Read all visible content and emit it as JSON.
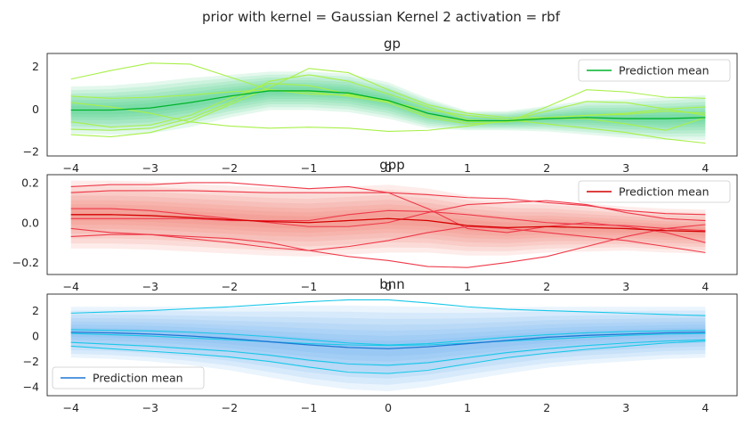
{
  "suptitle": "prior with kernel = Gaussian Kernel 2 activation = rbf",
  "chart_data": [
    {
      "type": "line",
      "title": "gp",
      "xlim": [
        -4.3,
        4.4
      ],
      "ylim": [
        -2.2,
        2.6
      ],
      "x_ticks": [
        -4,
        -3,
        -2,
        -1,
        0,
        1,
        2,
        3,
        4
      ],
      "x_tick_labels": [
        "−4",
        "−3",
        "−2",
        "−1",
        "0",
        "1",
        "2",
        "3",
        "4"
      ],
      "y_ticks": [
        -2,
        0,
        2
      ],
      "y_tick_labels": [
        "−2",
        "0",
        "2"
      ],
      "legend": {
        "label": "Prediction mean",
        "placement": "upper right"
      },
      "colors": {
        "mean": "#00b32c",
        "band": "#2ecc71",
        "sample": "#a8f04a"
      },
      "x": [
        -4,
        -3.5,
        -3,
        -2.5,
        -2,
        -1.5,
        -1,
        -0.5,
        0,
        0.5,
        1,
        1.5,
        2,
        2.5,
        3,
        3.5,
        4
      ],
      "mean": [
        -0.05,
        -0.05,
        0.05,
        0.3,
        0.6,
        0.85,
        0.85,
        0.75,
        0.4,
        -0.2,
        -0.55,
        -0.55,
        -0.45,
        -0.4,
        -0.45,
        -0.45,
        -0.4
      ],
      "band_half_width": [
        1.1,
        1.15,
        1.2,
        1.15,
        1.0,
        0.9,
        0.9,
        0.9,
        0.85,
        0.7,
        0.45,
        0.45,
        0.6,
        0.8,
        0.9,
        1.0,
        1.05
      ],
      "samples": [
        [
          1.4,
          1.8,
          2.15,
          2.1,
          1.5,
          0.9,
          0.7,
          0.65,
          0.4,
          -0.3,
          -0.6,
          -0.55,
          -0.1,
          0.35,
          0.3,
          0.0,
          -0.3
        ],
        [
          0.6,
          0.5,
          0.55,
          0.65,
          0.8,
          0.9,
          0.8,
          0.6,
          0.3,
          -0.4,
          -0.7,
          -0.6,
          -0.45,
          -0.45,
          -0.7,
          -1.0,
          -0.4
        ],
        [
          -0.6,
          -0.85,
          -0.75,
          -0.3,
          0.5,
          1.2,
          1.1,
          0.7,
          0.35,
          -0.05,
          -0.3,
          -0.5,
          -0.7,
          -0.9,
          -1.1,
          -1.4,
          -1.6
        ],
        [
          -0.95,
          -1.0,
          -0.9,
          -0.45,
          0.3,
          1.3,
          1.6,
          1.3,
          0.7,
          0.1,
          -0.5,
          -0.6,
          0.1,
          0.9,
          0.8,
          0.55,
          0.5
        ],
        [
          -1.2,
          -1.3,
          -1.1,
          -0.6,
          0.2,
          1.0,
          1.9,
          1.7,
          0.9,
          0.2,
          -0.2,
          -0.4,
          -0.4,
          -0.3,
          -0.2,
          0.0,
          0.1
        ],
        [
          0.3,
          0.1,
          -0.2,
          -0.6,
          -0.8,
          -0.9,
          -0.85,
          -0.9,
          -1.05,
          -1.0,
          -0.8,
          -0.55,
          -0.4,
          -0.3,
          -0.25,
          -0.1,
          -0.2
        ]
      ]
    },
    {
      "type": "line",
      "title": "gpp",
      "xlim": [
        -4.3,
        4.4
      ],
      "ylim": [
        -0.26,
        0.24
      ],
      "x_ticks": [
        -4,
        -3,
        -2,
        -1,
        0,
        1,
        2,
        3,
        4
      ],
      "x_tick_labels": [
        "−4",
        "−3",
        "−2",
        "−1",
        "0",
        "1",
        "2",
        "3",
        "4"
      ],
      "y_ticks": [
        -0.2,
        0.0,
        0.2
      ],
      "y_tick_labels": [
        "−0.2",
        "0.0",
        "0.2"
      ],
      "legend": {
        "label": "Prediction mean",
        "placement": "upper right"
      },
      "colors": {
        "mean": "#d40000",
        "band": "#f06a5a",
        "sample": "#ee3a4a"
      },
      "x": [
        -4,
        -3.5,
        -3,
        -2.5,
        -2,
        -1.5,
        -1,
        -0.5,
        0,
        0.5,
        1,
        1.5,
        2,
        2.5,
        3,
        3.5,
        4
      ],
      "mean": [
        0.04,
        0.04,
        0.035,
        0.025,
        0.015,
        0.005,
        0.0,
        0.01,
        0.02,
        0.01,
        -0.015,
        -0.025,
        -0.02,
        -0.025,
        -0.03,
        -0.04,
        -0.045
      ],
      "band_half_width": [
        0.17,
        0.17,
        0.17,
        0.17,
        0.17,
        0.17,
        0.17,
        0.17,
        0.17,
        0.16,
        0.15,
        0.14,
        0.13,
        0.12,
        0.11,
        0.11,
        0.11
      ],
      "samples": [
        [
          0.18,
          0.19,
          0.19,
          0.2,
          0.2,
          0.185,
          0.17,
          0.18,
          0.15,
          0.07,
          -0.03,
          -0.05,
          -0.02,
          0.0,
          -0.02,
          -0.05,
          -0.1
        ],
        [
          0.15,
          0.16,
          0.16,
          0.16,
          0.155,
          0.15,
          0.15,
          0.15,
          0.15,
          0.14,
          0.125,
          0.12,
          0.1,
          0.085,
          0.06,
          0.045,
          0.04
        ],
        [
          0.07,
          0.07,
          0.06,
          0.04,
          0.02,
          0.0,
          -0.02,
          -0.02,
          0.0,
          0.05,
          0.09,
          0.1,
          0.11,
          0.09,
          0.05,
          0.02,
          0.01
        ],
        [
          -0.03,
          -0.05,
          -0.06,
          -0.08,
          -0.1,
          -0.125,
          -0.14,
          -0.12,
          -0.09,
          -0.05,
          -0.02,
          -0.03,
          -0.05,
          -0.07,
          -0.09,
          -0.12,
          -0.15
        ],
        [
          -0.07,
          -0.06,
          -0.06,
          -0.07,
          -0.08,
          -0.1,
          -0.14,
          -0.17,
          -0.19,
          -0.22,
          -0.225,
          -0.2,
          -0.17,
          -0.12,
          -0.07,
          -0.03,
          -0.01
        ],
        [
          0.02,
          0.02,
          0.02,
          0.02,
          0.01,
          0.01,
          0.01,
          0.04,
          0.06,
          0.055,
          0.04,
          0.02,
          0.0,
          -0.01,
          -0.015,
          -0.03,
          -0.04
        ]
      ]
    },
    {
      "type": "line",
      "title": "bnn",
      "xlim": [
        -4.3,
        4.4
      ],
      "ylim": [
        -4.7,
        3.3
      ],
      "x_ticks": [
        -4,
        -3,
        -2,
        -1,
        0,
        1,
        2,
        3,
        4
      ],
      "x_tick_labels": [
        "−4",
        "−3",
        "−2",
        "−1",
        "0",
        "1",
        "2",
        "3",
        "4"
      ],
      "y_ticks": [
        -4,
        -2,
        0,
        2
      ],
      "y_tick_labels": [
        "−4",
        "−2",
        "0",
        "2"
      ],
      "legend": {
        "label": "Prediction mean",
        "placement": "lower left"
      },
      "colors": {
        "mean": "#1f77d4",
        "band": "#5aaaf0",
        "sample": "#18c8e8"
      },
      "x": [
        -4,
        -3.5,
        -3,
        -2.5,
        -2,
        -1.5,
        -1,
        -0.5,
        0,
        0.5,
        1,
        1.5,
        2,
        2.5,
        3,
        3.5,
        4
      ],
      "mean": [
        0.3,
        0.25,
        0.15,
        0.0,
        -0.2,
        -0.45,
        -0.7,
        -0.9,
        -1.0,
        -0.85,
        -0.6,
        -0.35,
        -0.1,
        0.05,
        0.15,
        0.25,
        0.3
      ],
      "band_half_width": [
        2.0,
        2.05,
        2.15,
        2.3,
        2.5,
        2.8,
        3.1,
        3.3,
        3.35,
        3.15,
        2.85,
        2.6,
        2.4,
        2.25,
        2.15,
        2.05,
        2.0
      ],
      "samples": [
        [
          1.8,
          1.9,
          2.0,
          2.15,
          2.3,
          2.5,
          2.7,
          2.85,
          2.85,
          2.6,
          2.3,
          2.1,
          2.0,
          1.9,
          1.8,
          1.7,
          1.6
        ],
        [
          0.2,
          0.1,
          0.0,
          -0.15,
          -0.3,
          -0.45,
          -0.6,
          -0.7,
          -0.75,
          -0.7,
          -0.55,
          -0.4,
          -0.25,
          -0.1,
          0.05,
          0.15,
          0.2
        ],
        [
          -0.5,
          -0.65,
          -0.8,
          -1.0,
          -1.2,
          -1.5,
          -1.9,
          -2.2,
          -2.3,
          -2.1,
          -1.7,
          -1.3,
          -1.0,
          -0.75,
          -0.55,
          -0.4,
          -0.3
        ],
        [
          -0.8,
          -1.0,
          -1.2,
          -1.4,
          -1.65,
          -2.0,
          -2.45,
          -2.85,
          -2.95,
          -2.7,
          -2.2,
          -1.7,
          -1.35,
          -1.05,
          -0.8,
          -0.55,
          -0.4
        ],
        [
          0.5,
          0.45,
          0.4,
          0.3,
          0.15,
          -0.05,
          -0.3,
          -0.55,
          -0.7,
          -0.6,
          -0.35,
          -0.1,
          0.1,
          0.25,
          0.35,
          0.4,
          0.45
        ]
      ]
    }
  ]
}
